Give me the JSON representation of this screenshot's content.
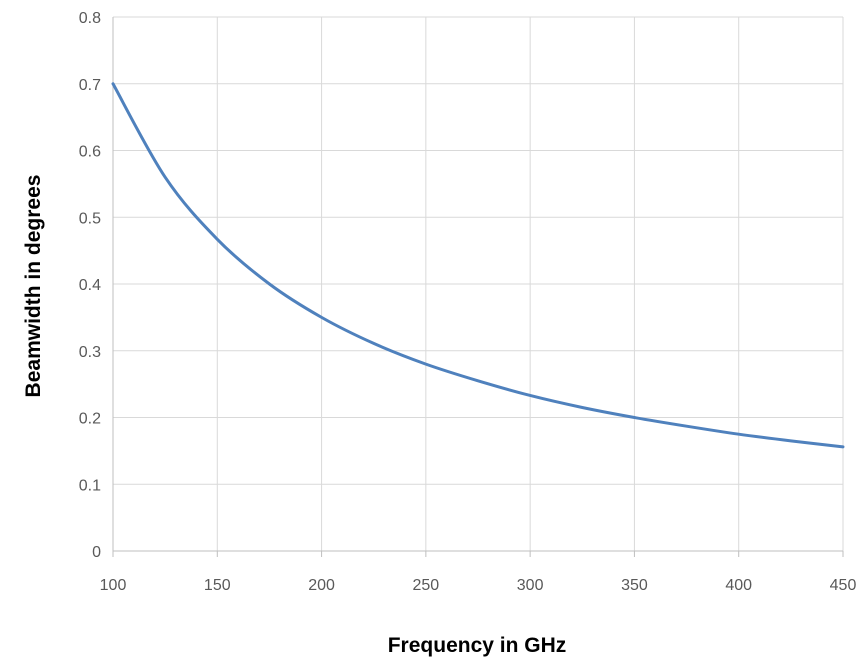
{
  "chart_data": {
    "type": "line",
    "title": "",
    "xlabel": "Frequency in GHz",
    "ylabel": "Beamwidth in degrees",
    "xlim": [
      100,
      450
    ],
    "ylim": [
      0,
      0.8
    ],
    "x_ticks": [
      "100",
      "150",
      "200",
      "250",
      "300",
      "350",
      "400",
      "450"
    ],
    "y_ticks": [
      "0",
      "0.1",
      "0.2",
      "0.3",
      "0.4",
      "0.5",
      "0.6",
      "0.7",
      "0.8"
    ],
    "grid": true,
    "legend": "none",
    "series": [
      {
        "color": "#4f81bd",
        "x": [
          100,
          125,
          150,
          175,
          200,
          225,
          250,
          275,
          300,
          325,
          350,
          375,
          400,
          425,
          450
        ],
        "y": [
          0.7,
          0.56,
          0.467,
          0.4,
          0.35,
          0.311,
          0.28,
          0.255,
          0.233,
          0.215,
          0.2,
          0.187,
          0.175,
          0.165,
          0.156
        ]
      }
    ]
  }
}
